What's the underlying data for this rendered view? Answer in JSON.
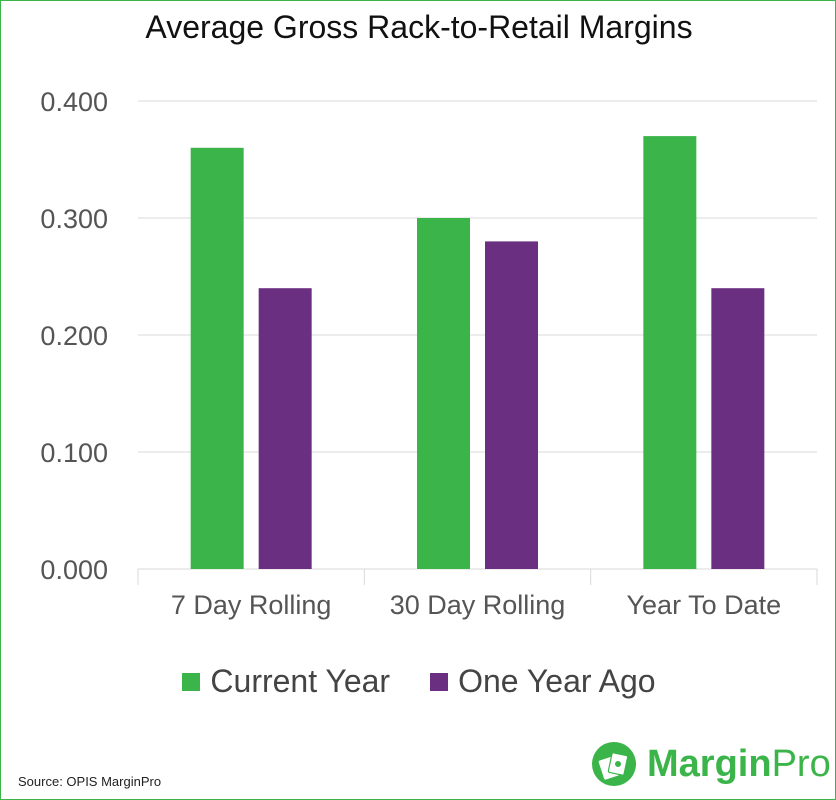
{
  "chart_data": {
    "type": "bar",
    "title": "Average Gross Rack-to-Retail Margins",
    "categories": [
      "7 Day Rolling",
      "30 Day Rolling",
      "Year To Date"
    ],
    "series": [
      {
        "name": "Current Year",
        "values": [
          0.36,
          0.3,
          0.37
        ],
        "color": "#3bb54a"
      },
      {
        "name": "One Year Ago",
        "values": [
          0.24,
          0.28,
          0.24
        ],
        "color": "#6a2f80"
      }
    ],
    "ylim": [
      0,
      0.4
    ],
    "yticks": [
      "0.000",
      "0.100",
      "0.200",
      "0.300",
      "0.400"
    ],
    "grid": true,
    "legend": "bottom"
  },
  "source": "Source: OPIS MarginPro",
  "brand": {
    "name_bold": "Margin",
    "name_regular": "Pro",
    "icon": "money-stack-icon"
  }
}
